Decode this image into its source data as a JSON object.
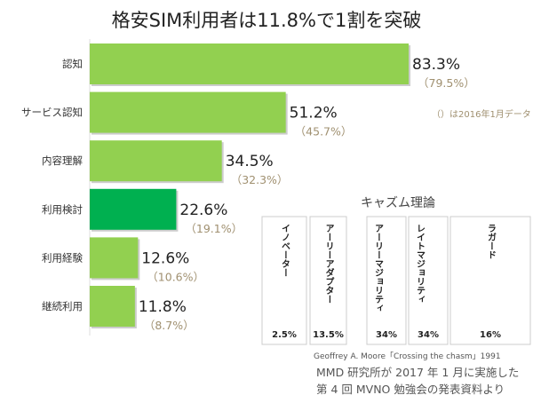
{
  "chart_data": {
    "type": "bar",
    "orientation": "horizontal",
    "title": "格安SIM利用者は11.8%で1割を突破",
    "categories": [
      "認知",
      "サービス認知",
      "内容理解",
      "利用検討",
      "利用経験",
      "継続利用"
    ],
    "series": [
      {
        "name": "2017年1月",
        "values": [
          83.3,
          51.2,
          34.5,
          22.6,
          12.6,
          11.8
        ],
        "labels": [
          "83.3%",
          "51.2%",
          "34.5%",
          "22.6%",
          "12.6%",
          "11.8%"
        ]
      },
      {
        "name": "2016年1月",
        "values": [
          79.5,
          45.7,
          32.3,
          19.1,
          10.6,
          8.7
        ],
        "labels": [
          "（79.5%）",
          "（45.7%）",
          "（32.3%）",
          "（19.1%）",
          "（10.6%）",
          "（8.7%）"
        ]
      }
    ],
    "highlight_index": 3,
    "note": "（）は2016年1月データ",
    "xlim": [
      0,
      100
    ],
    "colors": {
      "bar": "#92d050",
      "highlight": "#00b050",
      "prev_label": "#a09070"
    }
  },
  "chasm": {
    "title": "キャズム理論",
    "segments": [
      {
        "label": "イノベーター",
        "percent": "2.5%"
      },
      {
        "label": "アーリーアダプター",
        "percent": "13.5%"
      },
      {
        "label": "アーリーマジョリティ",
        "percent": "34%"
      },
      {
        "label": "レイトマジョリティ",
        "percent": "34%"
      },
      {
        "label": "ラガード",
        "percent": "16%"
      }
    ],
    "citation": "Geoffrey A. Moore「Crossing the chasm」1991",
    "colors": {
      "fill": "#fbb07e",
      "curve": "#f0641e"
    }
  },
  "source_lines": [
    "MMD 研究所が 2017 年 1 月に実施した",
    "第 4 回 MVNO 勉強会の発表資料より"
  ]
}
